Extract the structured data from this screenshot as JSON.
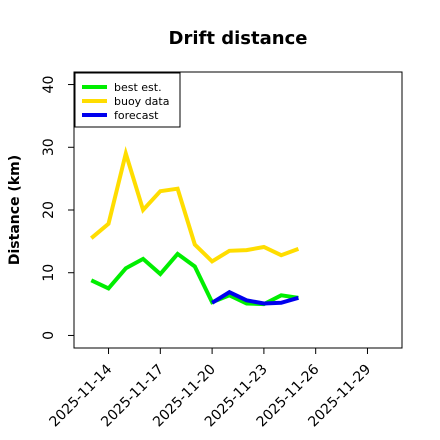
{
  "chart_data": {
    "type": "line",
    "title": "Drift distance",
    "xlabel": "",
    "ylabel": "Distance (km)",
    "ylim": [
      -2,
      42
    ],
    "yticks": [
      0,
      10,
      20,
      30,
      40
    ],
    "xlim": [
      "2025-11-12",
      "2025-12-01"
    ],
    "xtick_labels": [
      {
        "label": "2025-11-14",
        "color": "#000000"
      },
      {
        "label": "2025-11-17",
        "color": "#000000"
      },
      {
        "label": "2025-11-20",
        "color": "#228B22"
      },
      {
        "label": "2025-11-23",
        "color": "#000000"
      },
      {
        "label": "2025-11-26",
        "color": "#000000"
      },
      {
        "label": "2025-11-29",
        "color": "#000000"
      }
    ],
    "legend": {
      "placement": "top-left"
    },
    "series": [
      {
        "name": "best est.",
        "color": "#00ee00",
        "x": [
          "2025-11-13",
          "2025-11-14",
          "2025-11-15",
          "2025-11-16",
          "2025-11-17",
          "2025-11-18",
          "2025-11-19",
          "2025-11-20",
          "2025-11-21",
          "2025-11-22",
          "2025-11-23",
          "2025-11-24",
          "2025-11-25"
        ],
        "y": [
          8.8,
          7.5,
          10.7,
          12.2,
          9.8,
          13.0,
          11.0,
          5.3,
          6.4,
          5.1,
          5.0,
          6.4,
          6.0
        ]
      },
      {
        "name": "buoy data",
        "color": "#ffdd00",
        "x": [
          "2025-11-13",
          "2025-11-14",
          "2025-11-15",
          "2025-11-16",
          "2025-11-17",
          "2025-11-18",
          "2025-11-19",
          "2025-11-20",
          "2025-11-21",
          "2025-11-22",
          "2025-11-23",
          "2025-11-24",
          "2025-11-25"
        ],
        "y": [
          15.5,
          17.8,
          29.0,
          20.0,
          23.0,
          23.4,
          14.5,
          11.8,
          13.5,
          13.6,
          14.1,
          12.8,
          13.8
        ]
      },
      {
        "name": "forecast",
        "color": "#0000ee",
        "x": [
          "2025-11-20",
          "2025-11-21",
          "2025-11-22",
          "2025-11-23",
          "2025-11-24",
          "2025-11-25"
        ],
        "y": [
          5.2,
          6.9,
          5.6,
          5.1,
          5.2,
          6.0
        ]
      }
    ]
  }
}
